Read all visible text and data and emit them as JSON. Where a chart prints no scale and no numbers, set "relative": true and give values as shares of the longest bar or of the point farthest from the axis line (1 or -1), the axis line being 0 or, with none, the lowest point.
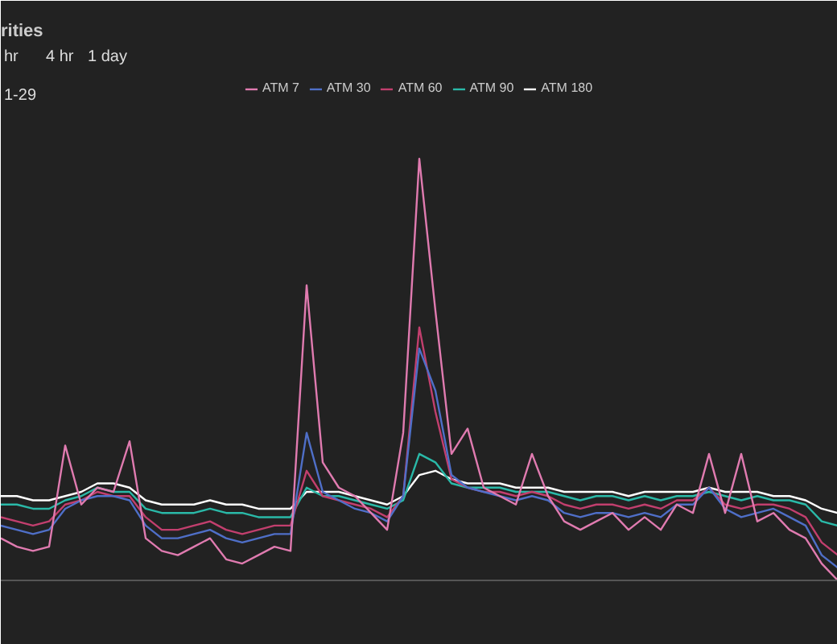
{
  "chart_data": {
    "type": "line",
    "title": "rities",
    "relative": true,
    "legend": "top",
    "grid": false,
    "annotations": [
      "hr",
      "4 hr",
      "1 day",
      "1-29"
    ],
    "categories": [
      null,
      null,
      null,
      null,
      null,
      null,
      null,
      null,
      null,
      null,
      null,
      null,
      null,
      null,
      null,
      null,
      null,
      null,
      null,
      null,
      null,
      null,
      null,
      null,
      null,
      null,
      null,
      null,
      null,
      null,
      null,
      null,
      null,
      null,
      null,
      null,
      null,
      null,
      null,
      null,
      null,
      null,
      null,
      null,
      null,
      null,
      null,
      null,
      null,
      null,
      null,
      null,
      null
    ],
    "series": [
      {
        "name": "ATM 7",
        "color": "#e07bb0",
        "values": [
          0.1,
          0.08,
          0.07,
          0.08,
          0.32,
          0.18,
          0.22,
          0.21,
          0.33,
          0.1,
          0.07,
          0.06,
          0.08,
          0.1,
          0.05,
          0.04,
          0.06,
          0.08,
          0.07,
          0.7,
          0.28,
          0.22,
          0.2,
          0.16,
          0.12,
          0.35,
          1.0,
          0.64,
          0.3,
          0.36,
          0.22,
          0.2,
          0.18,
          0.3,
          0.2,
          0.14,
          0.12,
          0.14,
          0.16,
          0.12,
          0.15,
          0.12,
          0.18,
          0.16,
          0.3,
          0.16,
          0.3,
          0.14,
          0.16,
          0.12,
          0.1,
          0.04,
          0
        ]
      },
      {
        "name": "ATM 30",
        "color": "#4f6fc8",
        "values": [
          0.13,
          0.12,
          0.11,
          0.12,
          0.17,
          0.19,
          0.2,
          0.2,
          0.19,
          0.13,
          0.1,
          0.1,
          0.11,
          0.12,
          0.1,
          0.09,
          0.1,
          0.11,
          0.11,
          0.35,
          0.21,
          0.19,
          0.17,
          0.16,
          0.14,
          0.2,
          0.55,
          0.45,
          0.25,
          0.22,
          0.21,
          0.2,
          0.19,
          0.2,
          0.19,
          0.16,
          0.15,
          0.16,
          0.16,
          0.15,
          0.16,
          0.15,
          0.18,
          0.18,
          0.22,
          0.17,
          0.15,
          0.16,
          0.17,
          0.15,
          0.13,
          0.06,
          0.03
        ]
      },
      {
        "name": "ATM 60",
        "color": "#c23f6e",
        "values": [
          0.15,
          0.14,
          0.13,
          0.14,
          0.18,
          0.19,
          0.21,
          0.2,
          0.2,
          0.15,
          0.12,
          0.12,
          0.13,
          0.14,
          0.12,
          0.11,
          0.12,
          0.13,
          0.13,
          0.26,
          0.2,
          0.19,
          0.18,
          0.17,
          0.15,
          0.2,
          0.6,
          0.4,
          0.24,
          0.22,
          0.21,
          0.21,
          0.2,
          0.21,
          0.2,
          0.18,
          0.17,
          0.18,
          0.18,
          0.17,
          0.18,
          0.17,
          0.19,
          0.19,
          0.22,
          0.18,
          0.17,
          0.18,
          0.18,
          0.17,
          0.15,
          0.09,
          0.06
        ]
      },
      {
        "name": "ATM 90",
        "color": "#2ab9a8",
        "values": [
          0.18,
          0.18,
          0.17,
          0.17,
          0.19,
          0.2,
          0.22,
          0.21,
          0.21,
          0.17,
          0.16,
          0.16,
          0.16,
          0.17,
          0.16,
          0.16,
          0.15,
          0.15,
          0.15,
          0.22,
          0.2,
          0.2,
          0.19,
          0.18,
          0.17,
          0.19,
          0.3,
          0.28,
          0.23,
          0.22,
          0.22,
          0.22,
          0.21,
          0.21,
          0.21,
          0.2,
          0.19,
          0.2,
          0.2,
          0.19,
          0.2,
          0.19,
          0.2,
          0.2,
          0.21,
          0.2,
          0.19,
          0.2,
          0.19,
          0.19,
          0.18,
          0.14,
          0.13
        ]
      },
      {
        "name": "ATM 180",
        "color": "#ffffff",
        "values": [
          0.2,
          0.2,
          0.19,
          0.19,
          0.2,
          0.21,
          0.23,
          0.23,
          0.22,
          0.19,
          0.18,
          0.18,
          0.18,
          0.19,
          0.18,
          0.18,
          0.17,
          0.17,
          0.17,
          0.21,
          0.21,
          0.21,
          0.2,
          0.19,
          0.18,
          0.2,
          0.25,
          0.26,
          0.24,
          0.23,
          0.23,
          0.23,
          0.22,
          0.22,
          0.22,
          0.21,
          0.21,
          0.21,
          0.21,
          0.2,
          0.21,
          0.21,
          0.21,
          0.21,
          0.22,
          0.21,
          0.21,
          0.21,
          0.2,
          0.2,
          0.19,
          0.17,
          0.16
        ]
      }
    ]
  }
}
